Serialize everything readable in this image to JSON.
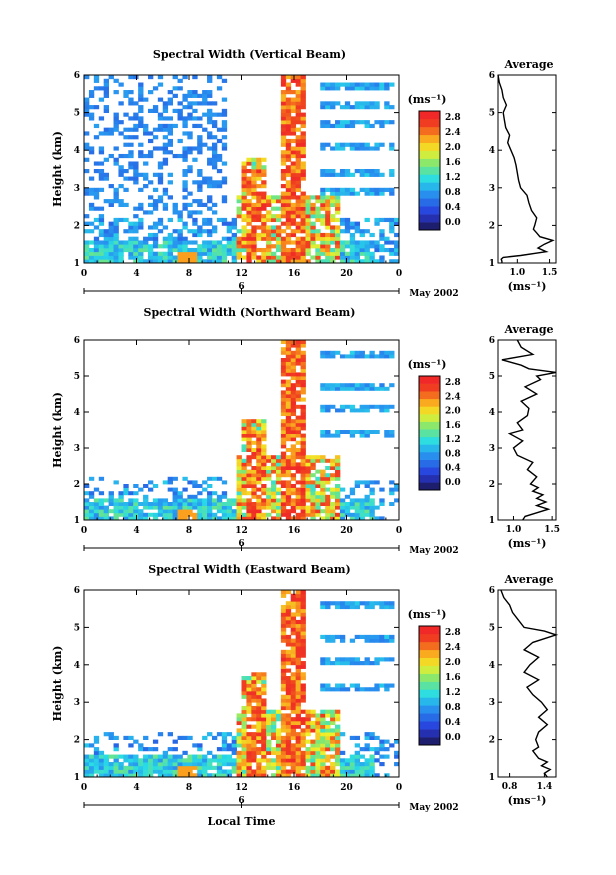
{
  "chart_data": [
    {
      "type": "heatmap",
      "title": "Spectral Width (Vertical Beam)",
      "ylabel": "Height (km)",
      "xlabel": "",
      "xlim": [
        0,
        24
      ],
      "ylim": [
        1,
        6
      ],
      "x_ticks": [
        "0",
        "4",
        "8",
        "12",
        "16",
        "20",
        "0"
      ],
      "y_ticks": [
        "1",
        "2",
        "3",
        "4",
        "5",
        "6"
      ],
      "date_axis": {
        "ticks": [
          "6"
        ],
        "label": "May 2002"
      },
      "colorbar": {
        "unit": "(ms⁻¹)",
        "min": 0.0,
        "max": 2.8,
        "ticks": [
          "0.0",
          "0.4",
          "0.8",
          "1.2",
          "1.6",
          "2.0",
          "2.4",
          "2.8"
        ]
      },
      "average": {
        "title": "Average",
        "xlabel": "(ms⁻¹)",
        "xlim": [
          0.7,
          1.6
        ],
        "x_ticks": [
          "1.0",
          "1.5"
        ],
        "profile": [
          [
            1.0,
            0.76
          ],
          [
            1.05,
            0.76
          ],
          [
            1.1,
            0.75
          ],
          [
            1.15,
            0.78
          ],
          [
            1.2,
            1.05
          ],
          [
            1.3,
            1.45
          ],
          [
            1.4,
            1.32
          ],
          [
            1.5,
            1.42
          ],
          [
            1.6,
            1.55
          ],
          [
            1.7,
            1.35
          ],
          [
            1.8,
            1.3
          ],
          [
            1.9,
            1.25
          ],
          [
            2.0,
            1.27
          ],
          [
            2.2,
            1.3
          ],
          [
            2.4,
            1.22
          ],
          [
            2.6,
            1.18
          ],
          [
            2.8,
            1.15
          ],
          [
            3.0,
            1.05
          ],
          [
            3.2,
            1.02
          ],
          [
            3.4,
            1.0
          ],
          [
            3.6,
            0.98
          ],
          [
            3.8,
            0.95
          ],
          [
            4.0,
            0.9
          ],
          [
            4.2,
            0.85
          ],
          [
            4.4,
            0.88
          ],
          [
            4.6,
            0.82
          ],
          [
            4.8,
            0.8
          ],
          [
            5.0,
            0.78
          ],
          [
            5.2,
            0.83
          ],
          [
            5.4,
            0.78
          ],
          [
            5.6,
            0.76
          ],
          [
            5.8,
            0.72
          ],
          [
            6.0,
            0.7
          ]
        ]
      }
    },
    {
      "type": "heatmap",
      "title": "Spectral Width (Northward Beam)",
      "ylabel": "Height (km)",
      "xlabel": "",
      "xlim": [
        0,
        24
      ],
      "ylim": [
        1,
        6
      ],
      "x_ticks": [
        "0",
        "4",
        "8",
        "12",
        "16",
        "20",
        "0"
      ],
      "y_ticks": [
        "1",
        "2",
        "3",
        "4",
        "5",
        "6"
      ],
      "date_axis": {
        "ticks": [
          "6"
        ],
        "label": "May 2002"
      },
      "colorbar": {
        "unit": "(ms⁻¹)",
        "min": 0.0,
        "max": 2.8,
        "ticks": [
          "0.0",
          "0.4",
          "0.8",
          "1.2",
          "1.6",
          "2.0",
          "2.4",
          "2.8"
        ]
      },
      "average": {
        "title": "Average",
        "xlabel": "(ms⁻¹)",
        "xlim": [
          0.8,
          1.55
        ],
        "x_ticks": [
          "1.0",
          "1.5"
        ],
        "profile": [
          [
            1.0,
            1.12
          ],
          [
            1.1,
            1.15
          ],
          [
            1.2,
            1.3
          ],
          [
            1.3,
            1.45
          ],
          [
            1.4,
            1.3
          ],
          [
            1.5,
            1.42
          ],
          [
            1.6,
            1.3
          ],
          [
            1.7,
            1.38
          ],
          [
            1.8,
            1.25
          ],
          [
            1.9,
            1.32
          ],
          [
            2.0,
            1.22
          ],
          [
            2.2,
            1.3
          ],
          [
            2.4,
            1.18
          ],
          [
            2.6,
            1.25
          ],
          [
            2.8,
            1.05
          ],
          [
            3.0,
            1.0
          ],
          [
            3.2,
            1.12
          ],
          [
            3.4,
            0.95
          ],
          [
            3.5,
            1.12
          ],
          [
            3.7,
            1.05
          ],
          [
            3.9,
            1.18
          ],
          [
            4.1,
            1.2
          ],
          [
            4.3,
            1.1
          ],
          [
            4.5,
            1.3
          ],
          [
            4.7,
            1.15
          ],
          [
            4.9,
            1.35
          ],
          [
            5.0,
            1.3
          ],
          [
            5.1,
            1.55
          ],
          [
            5.2,
            1.2
          ],
          [
            5.3,
            1.1
          ],
          [
            5.45,
            0.85
          ],
          [
            5.6,
            1.25
          ],
          [
            5.8,
            1.1
          ],
          [
            6.0,
            1.05
          ]
        ]
      }
    },
    {
      "type": "heatmap",
      "title": "Spectral Width (Eastward Beam)",
      "ylabel": "Height (km)",
      "xlabel": "Local Time",
      "xlim": [
        0,
        24
      ],
      "ylim": [
        1,
        6
      ],
      "x_ticks": [
        "0",
        "4",
        "8",
        "12",
        "16",
        "20",
        "0"
      ],
      "y_ticks": [
        "1",
        "2",
        "3",
        "4",
        "5",
        "6"
      ],
      "date_axis": {
        "ticks": [
          "6"
        ],
        "label": "May 2002"
      },
      "colorbar": {
        "unit": "(ms⁻¹)",
        "min": 0.0,
        "max": 2.8,
        "ticks": [
          "0.0",
          "0.4",
          "0.8",
          "1.2",
          "1.6",
          "2.0",
          "2.4",
          "2.8"
        ]
      },
      "average": {
        "title": "Average",
        "xlabel": "(ms⁻¹)",
        "xlim": [
          0.6,
          1.6
        ],
        "x_ticks": [
          "0.8",
          "1.4"
        ],
        "profile": [
          [
            1.0,
            1.45
          ],
          [
            1.1,
            1.4
          ],
          [
            1.2,
            1.5
          ],
          [
            1.3,
            1.35
          ],
          [
            1.4,
            1.45
          ],
          [
            1.5,
            1.3
          ],
          [
            1.6,
            1.25
          ],
          [
            1.7,
            1.2
          ],
          [
            1.8,
            1.3
          ],
          [
            2.0,
            1.25
          ],
          [
            2.2,
            1.3
          ],
          [
            2.4,
            1.45
          ],
          [
            2.6,
            1.3
          ],
          [
            2.8,
            1.45
          ],
          [
            3.0,
            1.35
          ],
          [
            3.2,
            1.2
          ],
          [
            3.4,
            1.1
          ],
          [
            3.6,
            1.3
          ],
          [
            3.8,
            1.05
          ],
          [
            4.0,
            1.15
          ],
          [
            4.2,
            1.3
          ],
          [
            4.4,
            1.05
          ],
          [
            4.6,
            1.2
          ],
          [
            4.8,
            1.6
          ],
          [
            4.9,
            1.4
          ],
          [
            5.0,
            1.05
          ],
          [
            5.2,
            0.95
          ],
          [
            5.4,
            0.85
          ],
          [
            5.6,
            0.8
          ],
          [
            5.8,
            0.7
          ],
          [
            6.0,
            0.65
          ]
        ]
      }
    }
  ]
}
